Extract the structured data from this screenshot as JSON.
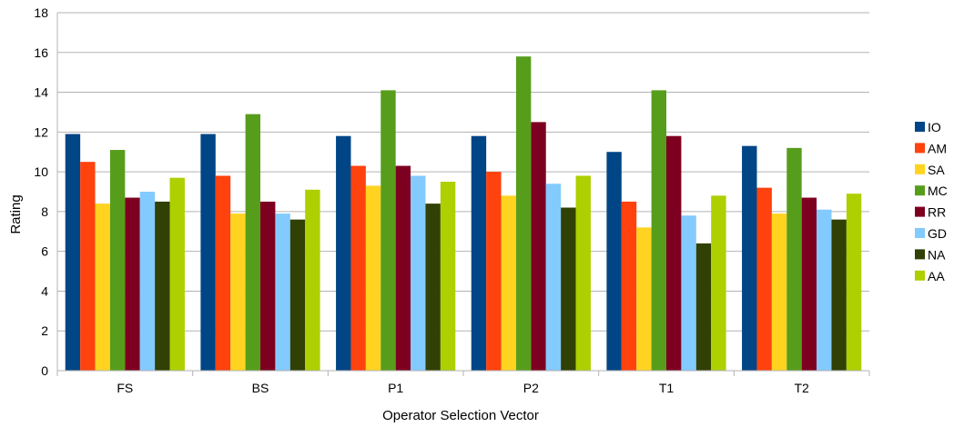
{
  "chart_data": {
    "type": "bar",
    "categories": [
      "FS",
      "BS",
      "P1",
      "P2",
      "T1",
      "T2"
    ],
    "series": [
      {
        "name": "IO",
        "color": "#004586",
        "values": [
          11.9,
          11.9,
          11.8,
          11.8,
          11.0,
          11.3
        ]
      },
      {
        "name": "AM",
        "color": "#ff420e",
        "values": [
          10.5,
          9.8,
          10.3,
          10.0,
          8.5,
          9.2
        ]
      },
      {
        "name": "SA",
        "color": "#ffd320",
        "values": [
          8.4,
          7.9,
          9.3,
          8.8,
          7.2,
          7.9
        ]
      },
      {
        "name": "MC",
        "color": "#579d1c",
        "values": [
          11.1,
          12.9,
          14.1,
          15.8,
          14.1,
          11.2
        ]
      },
      {
        "name": "RR",
        "color": "#7e0021",
        "values": [
          8.7,
          8.5,
          10.3,
          12.5,
          11.8,
          8.7
        ]
      },
      {
        "name": "GD",
        "color": "#83caff",
        "values": [
          9.0,
          7.9,
          9.8,
          9.4,
          7.8,
          8.1
        ]
      },
      {
        "name": "NA",
        "color": "#314004",
        "values": [
          8.5,
          7.6,
          8.4,
          8.2,
          6.4,
          7.6
        ]
      },
      {
        "name": "AA",
        "color": "#aecf00",
        "values": [
          9.7,
          9.1,
          9.5,
          9.8,
          8.8,
          8.9
        ]
      }
    ],
    "title": "",
    "xlabel": "Operator Selection Vector",
    "ylabel": "Rating",
    "ylim": [
      0,
      18
    ],
    "yticks": [
      0,
      2,
      4,
      6,
      8,
      10,
      12,
      14,
      16,
      18
    ],
    "grid": true,
    "legend_position": "right"
  }
}
